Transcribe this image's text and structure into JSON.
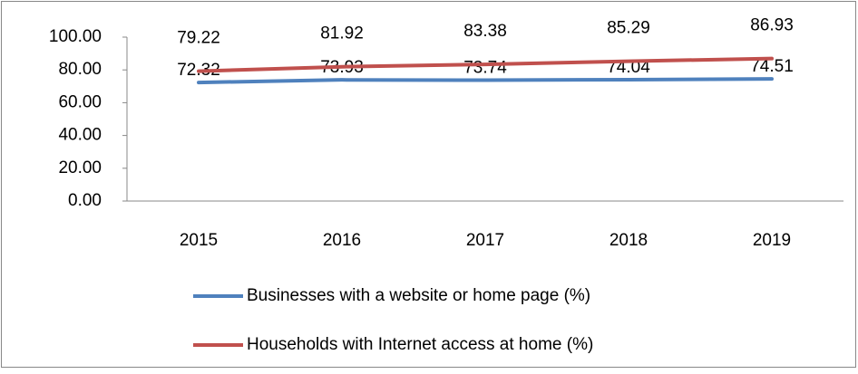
{
  "chart_data": {
    "type": "line",
    "categories": [
      "2015",
      "2016",
      "2017",
      "2018",
      "2019"
    ],
    "series": [
      {
        "name": "Businesses with a website or home page (%)",
        "color": "#4f81bd",
        "values": [
          72.32,
          73.93,
          73.74,
          74.04,
          74.51
        ]
      },
      {
        "name": "Households with Internet access at home (%)",
        "color": "#c0504d",
        "values": [
          79.22,
          81.92,
          83.38,
          85.29,
          86.93
        ]
      }
    ],
    "ylim": [
      0,
      100
    ],
    "yticks": [
      {
        "value": 0,
        "label": "0.00"
      },
      {
        "value": 20,
        "label": "20.00"
      },
      {
        "value": 40,
        "label": "40.00"
      },
      {
        "value": 60,
        "label": "60.00"
      },
      {
        "value": 80,
        "label": "80.00"
      },
      {
        "value": 100,
        "label": "100.00"
      }
    ],
    "grid": false,
    "legend": "bottom"
  }
}
